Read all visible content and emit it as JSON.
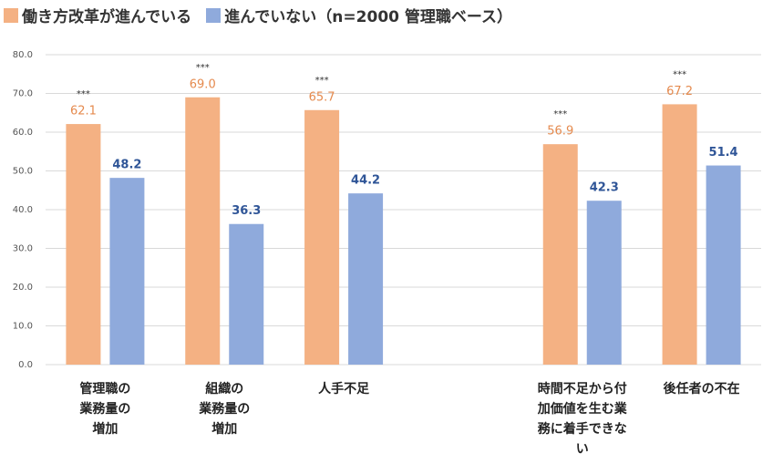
{
  "chart_data": {
    "type": "bar",
    "subtitle": "（n=2000 管理職ベース）",
    "categories": [
      "管理職の\n業務量の\n増加",
      "組織の\n業務量の\n増加",
      "人手不足",
      null,
      "時間不足から付\n加価値を生む業\n務に着手できな\nい",
      "後任者の不在"
    ],
    "series": [
      {
        "name": "働き方改革が進んでいる",
        "color": "#f4b183",
        "label_color": "#e58a4e",
        "values": [
          62.1,
          69.0,
          65.7,
          null,
          56.9,
          67.2
        ],
        "value_labels": [
          "62.1",
          "69.0",
          "65.7",
          null,
          "56.9",
          "67.2"
        ],
        "annotations": [
          "***",
          "***",
          "***",
          null,
          "***",
          "***"
        ]
      },
      {
        "name": "進んでいない",
        "color": "#8faadc",
        "label_color": "#2f5597",
        "values": [
          48.2,
          36.3,
          44.2,
          null,
          42.3,
          51.4
        ],
        "value_labels": [
          "48.2",
          "36.3",
          "44.2",
          null,
          "42.3",
          "51.4"
        ]
      }
    ],
    "ylim": [
      0,
      80
    ],
    "yticks": [
      {
        "value": 0,
        "label": "0.0"
      },
      {
        "value": 10,
        "label": "10.0"
      },
      {
        "value": 20,
        "label": "20.0"
      },
      {
        "value": 30,
        "label": "30.0"
      },
      {
        "value": 40,
        "label": "40.0"
      },
      {
        "value": 50,
        "label": "50.0"
      },
      {
        "value": 60,
        "label": "60.0"
      },
      {
        "value": 70,
        "label": "70.0"
      },
      {
        "value": 80,
        "label": "80.0"
      }
    ],
    "grid": true
  }
}
